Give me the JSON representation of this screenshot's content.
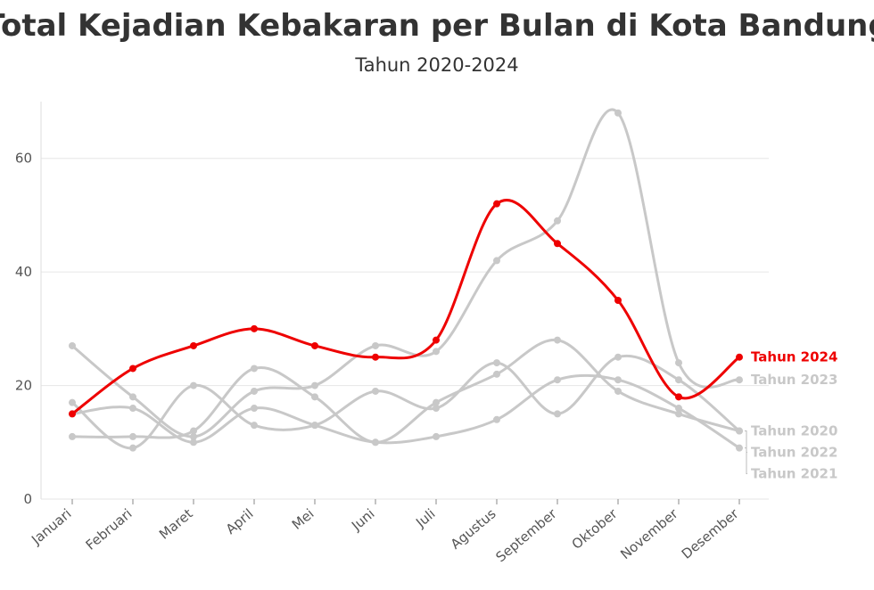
{
  "chart_data": {
    "type": "line",
    "title": "Total Kejadian Kebakaran per Bulan di Kota Bandung",
    "subtitle": "Tahun 2020-2024",
    "xlabel": "",
    "ylabel": "",
    "categories": [
      "Januari",
      "Februari",
      "Maret",
      "April",
      "Mei",
      "Juni",
      "Juli",
      "Agustus",
      "September",
      "Oktober",
      "November",
      "Desember"
    ],
    "ylim": [
      0,
      70
    ],
    "yticks": [
      0,
      20,
      40,
      60
    ],
    "grid": true,
    "legend": "direct labels at right end of lines",
    "series": [
      {
        "name": "Tahun 2020",
        "color": "#c8c8c8",
        "values": [
          17,
          9,
          20,
          13,
          13,
          19,
          16,
          24,
          15,
          25,
          21,
          12
        ]
      },
      {
        "name": "Tahun 2021",
        "color": "#c8c8c8",
        "values": [
          15,
          16,
          10,
          16,
          13,
          10,
          11,
          14,
          21,
          21,
          16,
          9
        ]
      },
      {
        "name": "Tahun 2022",
        "color": "#c8c8c8",
        "values": [
          11,
          11,
          12,
          23,
          18,
          10,
          17,
          22,
          28,
          19,
          15,
          12
        ]
      },
      {
        "name": "Tahun 2023",
        "color": "#c8c8c8",
        "values": [
          27,
          18,
          11,
          19,
          20,
          27,
          26,
          42,
          49,
          68,
          24,
          21
        ]
      },
      {
        "name": "Tahun 2024",
        "color": "#ee0000",
        "values": [
          15,
          23,
          27,
          30,
          27,
          25,
          28,
          52,
          45,
          35,
          18,
          25
        ]
      }
    ]
  }
}
